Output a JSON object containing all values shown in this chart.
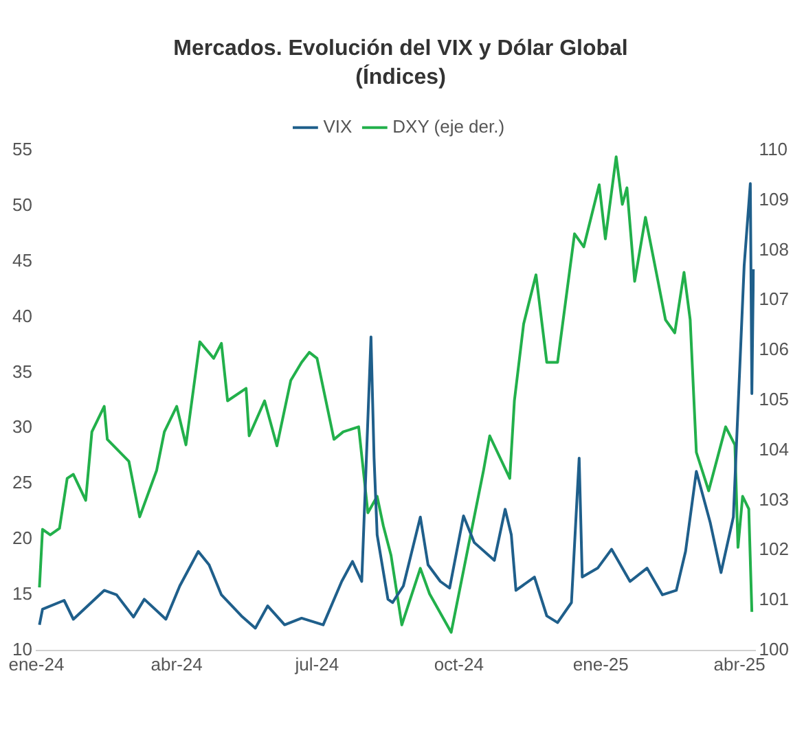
{
  "chart_data": {
    "type": "line",
    "title": "Mercados. Evolución del VIX y Dólar Global",
    "subtitle": "(Índices)",
    "xlim": [
      "2024-01-01",
      "2025-04-11"
    ],
    "xticks": [
      {
        "value": "2024-01-01",
        "label": "ene-24"
      },
      {
        "value": "2024-04-01",
        "label": "abr-24"
      },
      {
        "value": "2024-07-01",
        "label": "jul-24"
      },
      {
        "value": "2024-10-01",
        "label": "oct-24"
      },
      {
        "value": "2025-01-01",
        "label": "ene-25"
      },
      {
        "value": "2025-04-01",
        "label": "abr-25"
      }
    ],
    "ylim": [
      10,
      55
    ],
    "yticks": [
      10,
      15,
      20,
      25,
      30,
      35,
      40,
      45,
      50,
      55
    ],
    "y2lim": [
      100,
      110
    ],
    "y2ticks": [
      100,
      101,
      102,
      103,
      104,
      105,
      106,
      107,
      108,
      109,
      110
    ],
    "grid": false,
    "legend": "top",
    "marker": "none",
    "line_style": "solid",
    "series": [
      {
        "name": "VIX",
        "color": "#1f5f8b",
        "x": [
          "2024-01-03",
          "2024-01-05",
          "2024-01-19",
          "2024-01-25",
          "2024-02-14",
          "2024-02-22",
          "2024-03-04",
          "2024-03-11",
          "2024-03-25",
          "2024-04-03",
          "2024-04-15",
          "2024-04-22",
          "2024-04-30",
          "2024-05-13",
          "2024-05-22",
          "2024-05-30",
          "2024-06-10",
          "2024-06-21",
          "2024-07-05",
          "2024-07-17",
          "2024-07-24",
          "2024-07-30",
          "2024-08-05",
          "2024-08-07",
          "2024-08-09",
          "2024-08-16",
          "2024-08-19",
          "2024-08-26",
          "2024-09-06",
          "2024-09-11",
          "2024-09-19",
          "2024-09-25",
          "2024-10-04",
          "2024-10-11",
          "2024-10-24",
          "2024-10-31",
          "2024-11-04",
          "2024-11-07",
          "2024-11-19",
          "2024-11-27",
          "2024-12-04",
          "2024-12-13",
          "2024-12-18",
          "2024-12-20",
          "2024-12-30",
          "2025-01-08",
          "2025-01-20",
          "2025-01-31",
          "2025-02-10",
          "2025-02-19",
          "2025-02-25",
          "2025-03-04",
          "2025-03-13",
          "2025-03-20",
          "2025-03-28",
          "2025-04-04",
          "2025-04-08",
          "2025-04-09",
          "2025-04-10"
        ],
        "values": [
          12.3,
          13.7,
          14.5,
          12.8,
          15.4,
          15,
          13,
          14.6,
          12.8,
          15.8,
          18.9,
          17.7,
          15,
          13.1,
          12,
          14,
          12.3,
          12.9,
          12.3,
          16.2,
          18,
          16.2,
          38.2,
          27.3,
          20.4,
          14.6,
          14.3,
          15.8,
          22,
          17.7,
          16.2,
          15.6,
          22.1,
          19.7,
          18.1,
          22.7,
          20.4,
          15.4,
          16.6,
          13.1,
          12.5,
          14.3,
          27.3,
          16.6,
          17.4,
          19.1,
          16.2,
          17.4,
          15,
          15.4,
          18.9,
          26.1,
          21.5,
          17,
          22,
          44.6,
          52,
          33.1,
          44.3
        ]
      },
      {
        "name": "DXY (eje der.)",
        "color": "#22b04b",
        "axis": "y2",
        "x": [
          "2024-01-03",
          "2024-01-05",
          "2024-01-10",
          "2024-01-16",
          "2024-01-21",
          "2024-01-25",
          "2024-02-02",
          "2024-02-06",
          "2024-02-14",
          "2024-02-16",
          "2024-03-01",
          "2024-03-08",
          "2024-03-19",
          "2024-03-24",
          "2024-04-01",
          "2024-04-07",
          "2024-04-16",
          "2024-04-25",
          "2024-04-30",
          "2024-05-04",
          "2024-05-16",
          "2024-05-18",
          "2024-05-28",
          "2024-06-05",
          "2024-06-14",
          "2024-06-21",
          "2024-06-26",
          "2024-07-01",
          "2024-07-12",
          "2024-07-18",
          "2024-07-28",
          "2024-08-03",
          "2024-08-09",
          "2024-08-13",
          "2024-08-18",
          "2024-08-25",
          "2024-09-06",
          "2024-09-12",
          "2024-09-26",
          "2024-10-07",
          "2024-10-17",
          "2024-10-21",
          "2024-11-03",
          "2024-11-06",
          "2024-11-12",
          "2024-11-20",
          "2024-11-27",
          "2024-12-04",
          "2024-12-15",
          "2024-12-21",
          "2024-12-31",
          "2025-01-04",
          "2025-01-11",
          "2025-01-15",
          "2025-01-18",
          "2025-01-23",
          "2025-01-30",
          "2025-02-06",
          "2025-02-12",
          "2025-02-18",
          "2025-02-24",
          "2025-02-28",
          "2025-03-04",
          "2025-03-12",
          "2025-03-23",
          "2025-03-29",
          "2025-03-31",
          "2025-04-03",
          "2025-04-07",
          "2025-04-09"
        ],
        "values": [
          101.26,
          102.42,
          102.31,
          102.44,
          103.44,
          103.52,
          103,
          104.37,
          104.88,
          104.22,
          103.78,
          102.67,
          103.6,
          104.37,
          104.88,
          104.11,
          106.17,
          105.84,
          106.14,
          104.99,
          105.24,
          104.29,
          104.99,
          104.09,
          105.4,
          105.76,
          105.96,
          105.84,
          104.22,
          104.37,
          104.47,
          102.75,
          103.08,
          102.49,
          101.9,
          100.51,
          101.64,
          101.13,
          100.36,
          102.06,
          103.6,
          104.29,
          103.44,
          104.99,
          106.53,
          107.51,
          105.76,
          105.76,
          108.33,
          108.07,
          109.31,
          108.23,
          109.87,
          108.92,
          109.25,
          107.38,
          108.66,
          107.56,
          106.61,
          106.35,
          107.56,
          106.61,
          103.96,
          103.19,
          104.47,
          104.11,
          102.06,
          103.08,
          102.83,
          100.77
        ]
      }
    ]
  }
}
